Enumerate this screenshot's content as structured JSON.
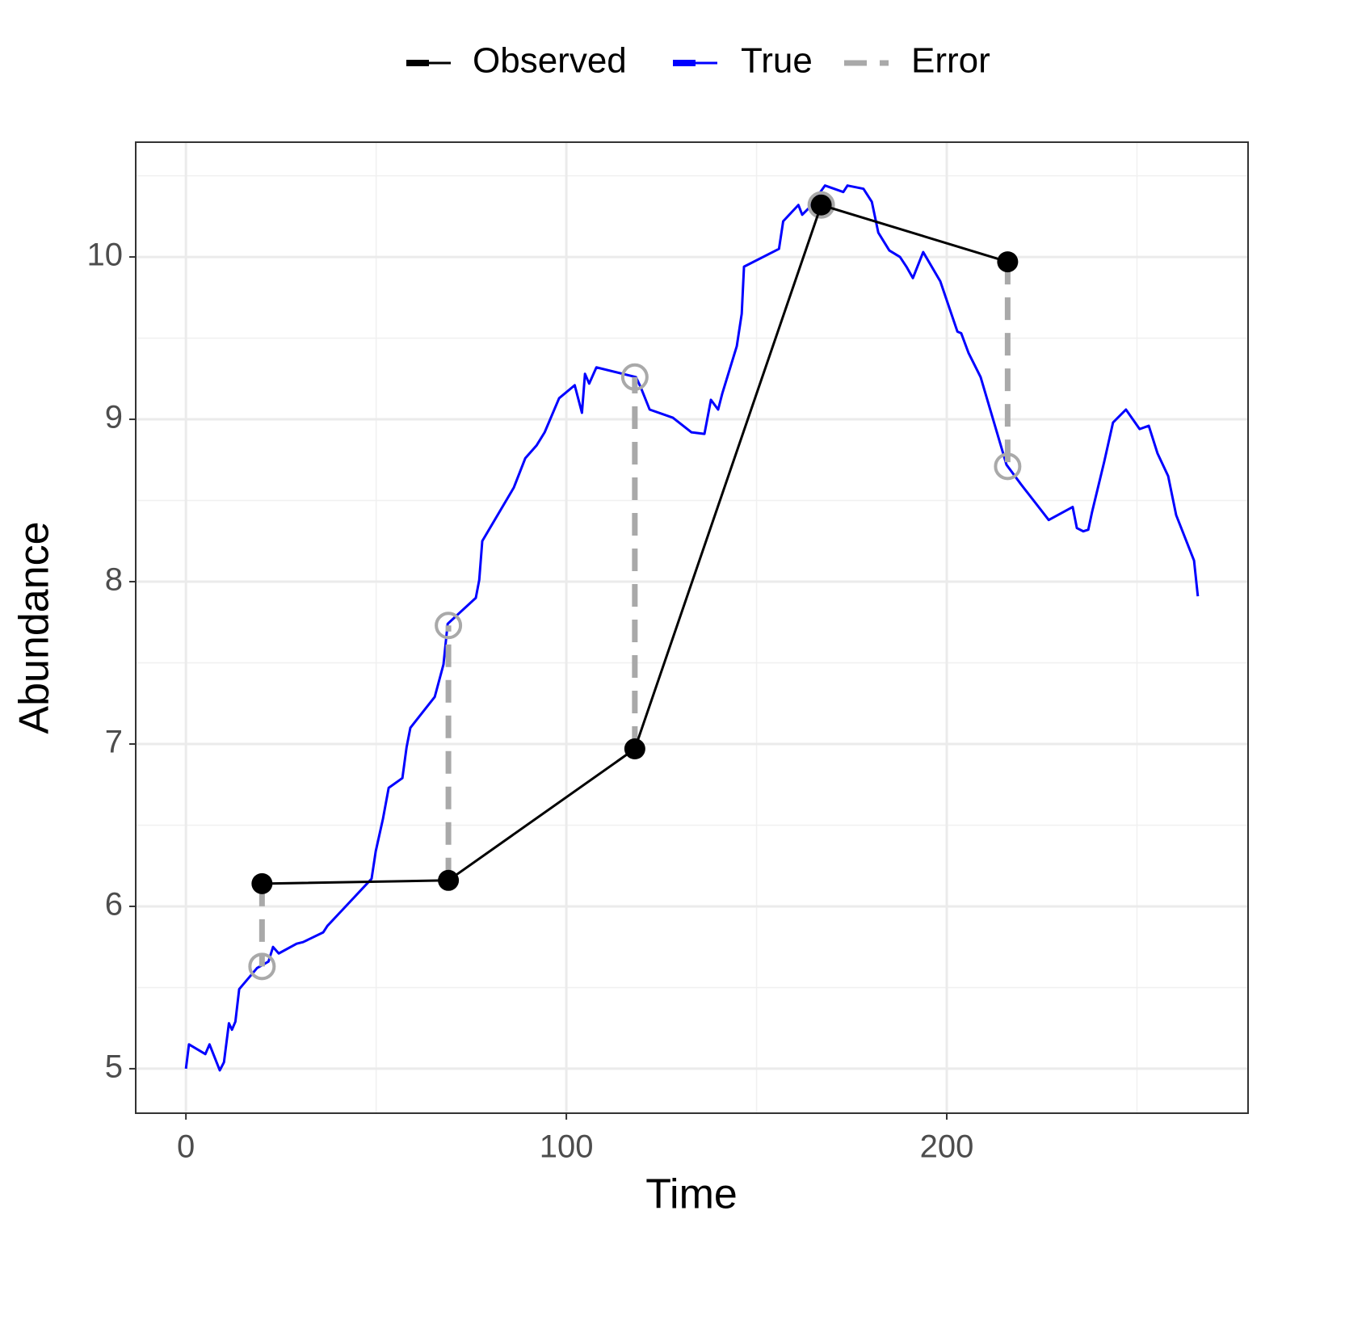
{
  "chart_data": {
    "type": "line",
    "xlabel": "Time",
    "ylabel": "Abundance",
    "xlim": [
      -13.2,
      279.2
    ],
    "ylim": [
      4.726,
      10.707
    ],
    "xticks": [
      0,
      100,
      200
    ],
    "yticks": [
      5,
      6,
      7,
      8,
      9,
      10
    ],
    "xminor": [
      50,
      150,
      250
    ],
    "yminor": [
      5.5,
      6.5,
      7.5,
      8.5,
      9.5,
      10.5
    ],
    "grid": true,
    "legend": "top",
    "series": [
      {
        "name": "Observed",
        "color": "#000000",
        "x": [
          20,
          69,
          118,
          167,
          216
        ],
        "values": [
          6.14,
          6.16,
          6.97,
          10.32,
          9.97
        ]
      },
      {
        "name": "True",
        "color": "#0000ff",
        "x": [
          0,
          0.8,
          5.1,
          6.2,
          8.9,
          10,
          11.3,
          12.1,
          13,
          14,
          18.7,
          21.7,
          22.9,
          24.4,
          29.1,
          30.8,
          36.1,
          37.2,
          42,
          48.8,
          49.9,
          51.8,
          53.3,
          56.9,
          58,
          59,
          65.4,
          67.7,
          68.8,
          71.1,
          76.2,
          77.1,
          77.9,
          86.2,
          89.2,
          92.2,
          94.3,
          98.1,
          102.2,
          104.1,
          104.9,
          106,
          107.9,
          118.3,
          119.5,
          121.9,
          128,
          132.9,
          136.3,
          138,
          139.9,
          141,
          144.8,
          146.1,
          146.7,
          155.9,
          157,
          161,
          162,
          163.7,
          168,
          172.8,
          173.9,
          178.1,
          180.3,
          182,
          184.9,
          187.7,
          189.4,
          191.1,
          193.8,
          198.3,
          202.8,
          203.8,
          205.7,
          208.9,
          215.7,
          219.5,
          226.8,
          233.1,
          234.2,
          235.9,
          237.2,
          238.2,
          241.4,
          243.7,
          247.1,
          250.7,
          253.1,
          255.4,
          258.2,
          260.3,
          265,
          266
        ],
        "values": [
          5.0,
          5.15,
          5.09,
          5.15,
          4.99,
          5.04,
          5.28,
          5.24,
          5.29,
          5.49,
          5.62,
          5.66,
          5.75,
          5.71,
          5.77,
          5.78,
          5.84,
          5.88,
          6.0,
          6.17,
          6.34,
          6.54,
          6.73,
          6.79,
          6.98,
          7.1,
          7.29,
          7.49,
          7.74,
          7.79,
          7.9,
          8.01,
          8.25,
          8.58,
          8.76,
          8.84,
          8.92,
          9.13,
          9.21,
          9.04,
          9.28,
          9.22,
          9.32,
          9.26,
          9.2,
          9.06,
          9.01,
          8.92,
          8.91,
          9.12,
          9.06,
          9.16,
          9.45,
          9.65,
          9.94,
          10.05,
          10.22,
          10.32,
          10.26,
          10.3,
          10.44,
          10.4,
          10.44,
          10.42,
          10.34,
          10.15,
          10.04,
          10.0,
          9.94,
          9.87,
          10.03,
          9.85,
          9.54,
          9.53,
          9.41,
          9.26,
          8.72,
          8.6,
          8.38,
          8.46,
          8.33,
          8.31,
          8.32,
          8.43,
          8.74,
          8.98,
          9.06,
          8.94,
          8.96,
          8.79,
          8.65,
          8.41,
          8.13,
          7.91
        ]
      },
      {
        "name": "Error",
        "color": "#a9a9a9",
        "x": [
          20,
          69,
          118,
          167,
          216
        ],
        "values": [
          5.63,
          7.73,
          9.26,
          10.32,
          8.71
        ]
      }
    ]
  }
}
